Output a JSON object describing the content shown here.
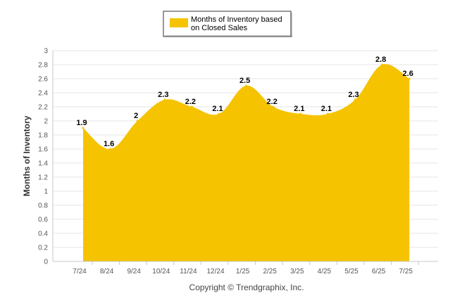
{
  "chart_data": {
    "type": "area",
    "categories": [
      "7/24",
      "8/24",
      "9/24",
      "10/24",
      "11/24",
      "12/24",
      "1/25",
      "2/25",
      "3/25",
      "4/25",
      "5/25",
      "6/25",
      "7/25"
    ],
    "series": [
      {
        "name": "Months of Inventory based on Closed Sales",
        "values": [
          1.9,
          1.6,
          2,
          2.3,
          2.2,
          2.1,
          2.5,
          2.2,
          2.1,
          2.1,
          2.3,
          2.8,
          2.6
        ],
        "data_labels": [
          "1.9",
          "1.6",
          "2",
          "2.3",
          "2.2",
          "2.1",
          "2.5",
          "2.2",
          "2.1",
          "2.1",
          "2.3",
          "2.8",
          "2.6"
        ],
        "color": "#F5C300"
      }
    ],
    "legend_lines": [
      "Months of Inventory based",
      "on Closed Sales"
    ],
    "title": "",
    "xlabel": "",
    "ylabel": "Months of Inventory",
    "ylim": [
      0,
      3
    ],
    "yticks": [
      "0",
      "0.2",
      "0.4",
      "0.6",
      "0.8",
      "1",
      "1.2",
      "1.4",
      "1.6",
      "1.8",
      "2",
      "2.2",
      "2.4",
      "2.6",
      "2.8",
      "3"
    ],
    "grid": true,
    "legend_position": "top-center",
    "copyright": "Copyright © Trendgraphix, Inc."
  }
}
